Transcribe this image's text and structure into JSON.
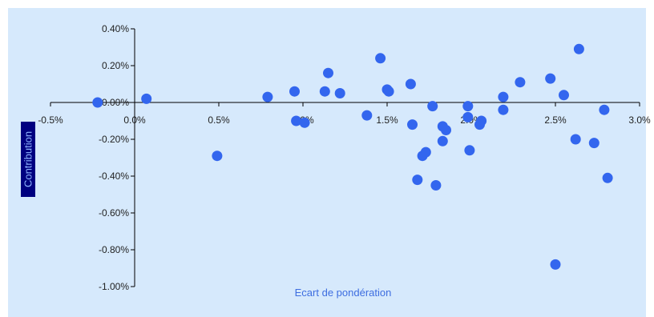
{
  "chart_data": {
    "type": "scatter",
    "xlabel": "Ecart de pondération",
    "ylabel": "Contribution",
    "xlim": [
      -0.5,
      3.0
    ],
    "ylim": [
      -1.0,
      0.4
    ],
    "x_unit": "%",
    "y_unit": "%",
    "x_ticks": [
      {
        "value": -0.5,
        "label": "-0.5%"
      },
      {
        "value": 0.0,
        "label": "0.0%"
      },
      {
        "value": 0.5,
        "label": "0.5%"
      },
      {
        "value": 1.0,
        "label": "1.0%"
      },
      {
        "value": 1.5,
        "label": "1.5%"
      },
      {
        "value": 2.0,
        "label": "2.0%"
      },
      {
        "value": 2.5,
        "label": "2.5%"
      },
      {
        "value": 3.0,
        "label": "3.0%"
      }
    ],
    "y_ticks": [
      {
        "value": 0.4,
        "label": "0.40%"
      },
      {
        "value": 0.2,
        "label": "0.20%"
      },
      {
        "value": 0.0,
        "label": "0.00%"
      },
      {
        "value": -0.2,
        "label": "-0.20%"
      },
      {
        "value": -0.4,
        "label": "-0.40%"
      },
      {
        "value": -0.6,
        "label": "-0.60%"
      },
      {
        "value": -0.8,
        "label": "-0.80%"
      },
      {
        "value": -1.0,
        "label": "-1.00%"
      }
    ],
    "grid": false,
    "legend": "none",
    "colors": {
      "plot_background": "#d6e9fc",
      "marker": "#3366ee",
      "axis_title": "#3d6de0",
      "ylabel_bg": "#000080",
      "ylabel_fg": "#8fb4ff"
    },
    "points": [
      {
        "x": -0.22,
        "y": 0.0
      },
      {
        "x": 0.07,
        "y": 0.02
      },
      {
        "x": 0.49,
        "y": -0.29
      },
      {
        "x": 0.79,
        "y": 0.03
      },
      {
        "x": 0.95,
        "y": 0.06
      },
      {
        "x": 0.96,
        "y": -0.1
      },
      {
        "x": 1.01,
        "y": -0.11
      },
      {
        "x": 1.13,
        "y": 0.06
      },
      {
        "x": 1.15,
        "y": 0.16
      },
      {
        "x": 1.22,
        "y": 0.05
      },
      {
        "x": 1.38,
        "y": -0.07
      },
      {
        "x": 1.46,
        "y": 0.24
      },
      {
        "x": 1.5,
        "y": 0.07
      },
      {
        "x": 1.51,
        "y": 0.06
      },
      {
        "x": 1.64,
        "y": 0.1
      },
      {
        "x": 1.65,
        "y": -0.12
      },
      {
        "x": 1.68,
        "y": -0.42
      },
      {
        "x": 1.71,
        "y": -0.29
      },
      {
        "x": 1.73,
        "y": -0.27
      },
      {
        "x": 1.77,
        "y": -0.02
      },
      {
        "x": 1.79,
        "y": -0.45
      },
      {
        "x": 1.83,
        "y": -0.13
      },
      {
        "x": 1.83,
        "y": -0.21
      },
      {
        "x": 1.85,
        "y": -0.15
      },
      {
        "x": 1.98,
        "y": -0.02
      },
      {
        "x": 1.98,
        "y": -0.08
      },
      {
        "x": 1.99,
        "y": -0.26
      },
      {
        "x": 2.05,
        "y": -0.12
      },
      {
        "x": 2.06,
        "y": -0.1
      },
      {
        "x": 2.19,
        "y": 0.03
      },
      {
        "x": 2.19,
        "y": -0.04
      },
      {
        "x": 2.29,
        "y": 0.11
      },
      {
        "x": 2.47,
        "y": 0.13
      },
      {
        "x": 2.5,
        "y": -0.88
      },
      {
        "x": 2.55,
        "y": 0.04
      },
      {
        "x": 2.62,
        "y": -0.2
      },
      {
        "x": 2.64,
        "y": 0.29
      },
      {
        "x": 2.73,
        "y": -0.22
      },
      {
        "x": 2.79,
        "y": -0.04
      },
      {
        "x": 2.81,
        "y": -0.41
      }
    ]
  }
}
